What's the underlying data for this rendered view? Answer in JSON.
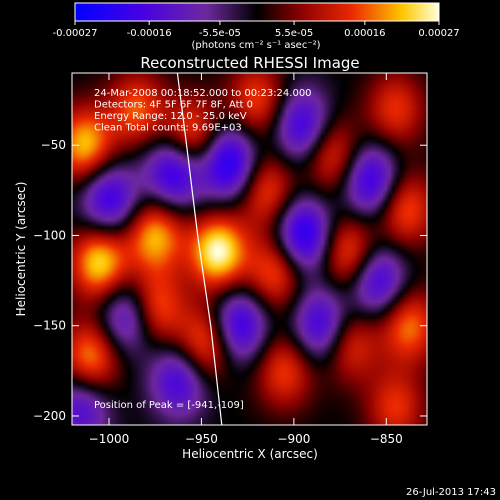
{
  "chart_data": {
    "type": "heatmap",
    "title": "Reconstructed RHESSI Image",
    "xlabel": "Heliocentric X (arcsec)",
    "ylabel": "Heliocentric Y (arcsec)",
    "xlim": [
      -1020,
      -828
    ],
    "ylim": [
      -205,
      -10
    ],
    "xticks": [
      -1000,
      -950,
      -900,
      -850
    ],
    "yticks": [
      -50,
      -100,
      -150,
      -200
    ],
    "xtick_labels": [
      "−1000",
      "−950",
      "−900",
      "−850"
    ],
    "ytick_labels": [
      "−50",
      "−100",
      "−150",
      "−200"
    ],
    "colorbar": {
      "min": -0.00027,
      "max": 0.00027,
      "ticks": [
        -0.00027,
        -0.00016,
        -5.5e-05,
        5.5e-05,
        0.00016,
        0.00027
      ],
      "tick_labels": [
        "-0.00027",
        "-0.00016",
        "-5.5e-05",
        "5.5e-05",
        "0.00016",
        "0.00027"
      ],
      "unit_label": "(photons cm⁻² s⁻¹ asec⁻²)"
    },
    "info_lines": [
      "24-Mar-2008 00:18:52.000 to 00:23:24.000",
      "Detectors: 4F 5F 6F 7F 8F, Att 0",
      "Energy Range: 12.0 - 25.0 keV",
      "Clean    Total counts: 9.69E+03"
    ],
    "peak_label": "Position of Peak = [-941,-109]",
    "peak": [
      -941,
      -109
    ],
    "limb_curve": [
      [
        -963,
        -10
      ],
      [
        -958,
        -50
      ],
      [
        -952,
        -100
      ],
      [
        -945,
        -150
      ],
      [
        -939,
        -205
      ]
    ],
    "sources": [
      {
        "x": -1013,
        "y": -50,
        "v": 0.00022
      },
      {
        "x": -1005,
        "y": -115,
        "v": 0.00024
      },
      {
        "x": -1010,
        "y": -168,
        "v": 0.0002
      },
      {
        "x": -985,
        "y": -30,
        "v": 0.00016
      },
      {
        "x": -975,
        "y": -100,
        "v": 0.00021
      },
      {
        "x": -975,
        "y": -140,
        "v": 0.00018
      },
      {
        "x": -955,
        "y": -45,
        "v": 0.00018
      },
      {
        "x": -941,
        "y": -109,
        "v": 0.00027
      },
      {
        "x": -948,
        "y": -160,
        "v": 0.00019
      },
      {
        "x": -920,
        "y": -25,
        "v": 0.00015
      },
      {
        "x": -915,
        "y": -75,
        "v": 0.00016
      },
      {
        "x": -910,
        "y": -120,
        "v": 0.00017
      },
      {
        "x": -905,
        "y": -175,
        "v": 0.00015
      },
      {
        "x": -880,
        "y": -55,
        "v": 0.00016
      },
      {
        "x": -870,
        "y": -110,
        "v": 0.00018
      },
      {
        "x": -870,
        "y": -160,
        "v": 0.00015
      },
      {
        "x": -845,
        "y": -30,
        "v": 0.00014
      },
      {
        "x": -840,
        "y": -85,
        "v": 0.00017
      },
      {
        "x": -838,
        "y": -150,
        "v": 0.00018
      },
      {
        "x": -845,
        "y": -195,
        "v": 0.00014
      },
      {
        "x": -1000,
        "y": -80,
        "v": -0.0002
      },
      {
        "x": -990,
        "y": -145,
        "v": -0.00018
      },
      {
        "x": -965,
        "y": -65,
        "v": -0.00022
      },
      {
        "x": -962,
        "y": -180,
        "v": -0.00018
      },
      {
        "x": -935,
        "y": -60,
        "v": -0.00024
      },
      {
        "x": -930,
        "y": -150,
        "v": -0.00021
      },
      {
        "x": -895,
        "y": -40,
        "v": -0.0002
      },
      {
        "x": -895,
        "y": -100,
        "v": -0.00024
      },
      {
        "x": -885,
        "y": -150,
        "v": -0.0002
      },
      {
        "x": -858,
        "y": -70,
        "v": -0.00021
      },
      {
        "x": -855,
        "y": -125,
        "v": -0.0002
      },
      {
        "x": -1015,
        "y": -195,
        "v": -0.00016
      }
    ]
  },
  "footer": {
    "timestamp": "26-Jul-2013 17:43"
  }
}
